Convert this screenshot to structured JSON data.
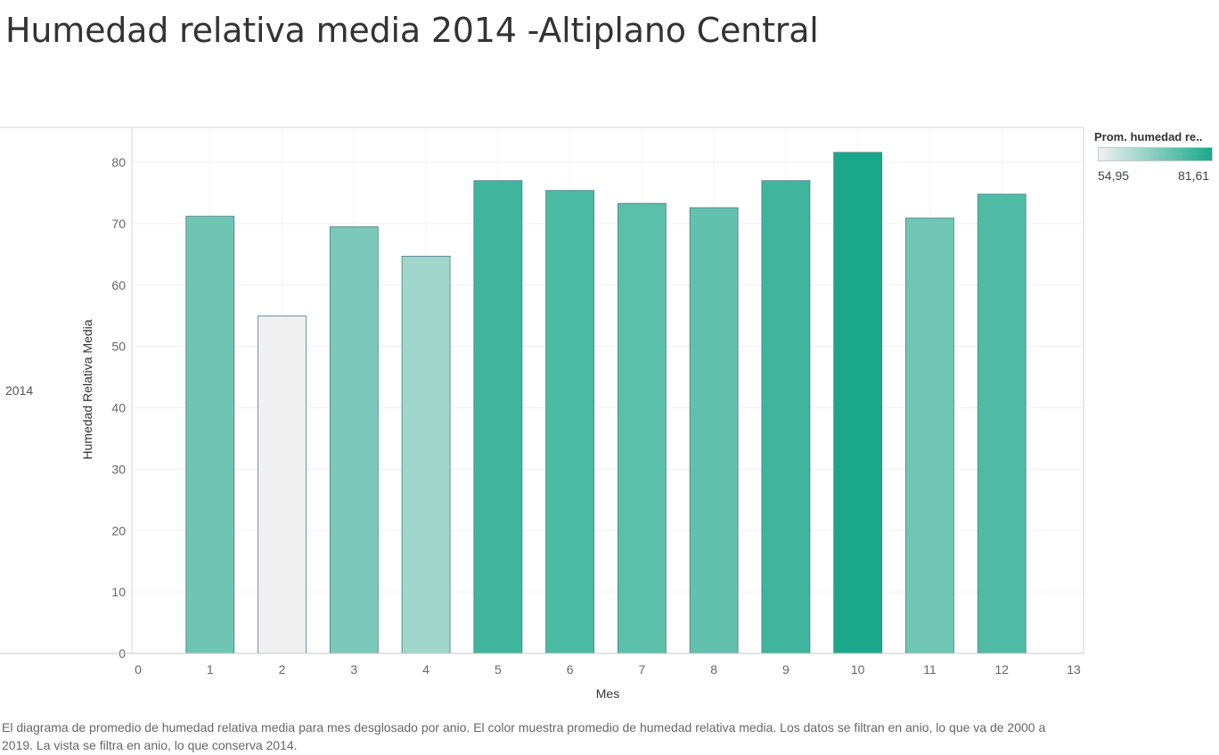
{
  "title": "Humedad relativa media 2014 -Altiplano Central",
  "row_label": "2014",
  "legend": {
    "title": "Prom. humedad re..",
    "min_label": "54,95",
    "max_label": "81,61",
    "color_min": "#f0f0f0",
    "color_max": "#19a98a"
  },
  "caption": "El diagrama de promedio de humedad relativa media para mes desglosado por anio.  El color muestra promedio de humedad relativa media. Los datos se filtran en anio, lo que va de 2000 a 2019. La vista se filtra en anio, lo que conserva 2014.",
  "chart_data": {
    "type": "bar",
    "x": [
      1,
      2,
      3,
      4,
      5,
      6,
      7,
      8,
      9,
      10,
      11,
      12
    ],
    "values": [
      71.2,
      54.95,
      69.5,
      64.7,
      77.0,
      75.4,
      73.3,
      72.6,
      77.0,
      81.61,
      70.9,
      74.8
    ],
    "xlabel": "Mes",
    "ylabel": "Humedad Relativa Media",
    "xlim": [
      0,
      13
    ],
    "ylim": [
      0,
      86
    ],
    "xticks": [
      "0",
      "1",
      "2",
      "3",
      "4",
      "5",
      "6",
      "7",
      "8",
      "9",
      "10",
      "11",
      "12",
      "13"
    ],
    "yticks": [
      "0",
      "10",
      "20",
      "30",
      "40",
      "50",
      "60",
      "70",
      "80"
    ],
    "grid": true,
    "legend_position": "top-right"
  }
}
